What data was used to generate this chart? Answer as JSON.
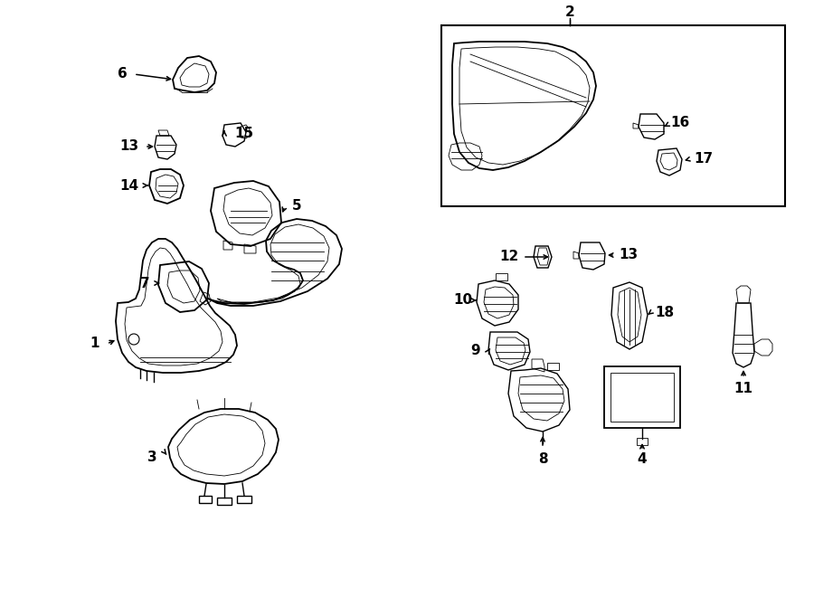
{
  "bg_color": "#ffffff",
  "line_color": "#000000",
  "fig_width": 9.0,
  "fig_height": 6.61,
  "lw": 1.0,
  "lw2": 1.3,
  "lw_thin": 0.6,
  "label_fontsize": 11
}
